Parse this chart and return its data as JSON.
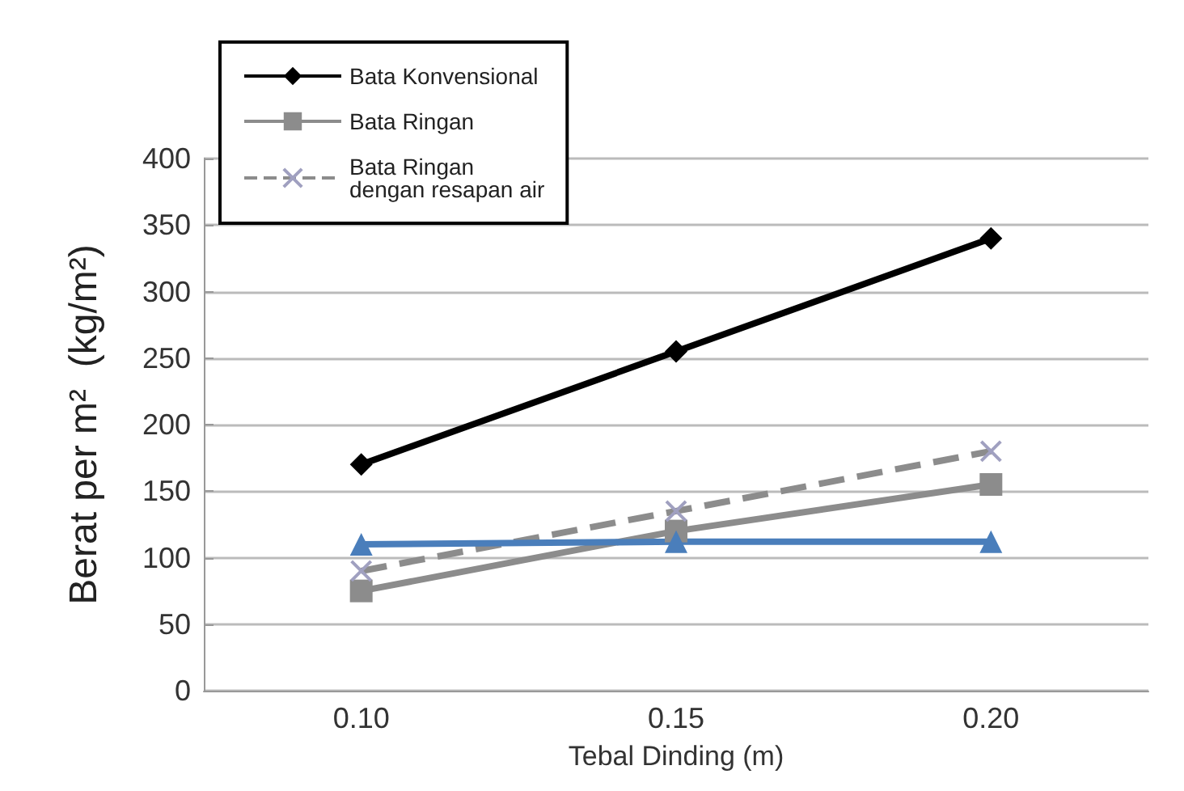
{
  "chart_data": {
    "type": "line",
    "xlabel": "Tebal Dinding (m)",
    "ylabel": "Berat per m²  (kg/m²)",
    "categories": [
      "0.10",
      "0.15",
      "0.20"
    ],
    "ylim": [
      0,
      400
    ],
    "yticks": [
      0,
      50,
      100,
      150,
      200,
      250,
      300,
      350,
      400
    ],
    "grid": "y",
    "legend": "top left",
    "series": [
      {
        "name": "Bata Konvensional",
        "color": "#000000",
        "marker": "diamond",
        "line_style": "solid",
        "values": [
          170,
          255,
          340
        ]
      },
      {
        "name": "Bata Ringan",
        "color": "#8c8c8c",
        "marker": "square",
        "line_style": "solid",
        "values": [
          75,
          120,
          155
        ]
      },
      {
        "name": "Bata Ringan\ndengan resapan air",
        "color": "#8c8c8c",
        "marker": "cross",
        "line_style": "dashed",
        "values": [
          90,
          135,
          180
        ]
      },
      {
        "color": "#4a7ebb",
        "marker": "triangle",
        "line_style": "solid",
        "values": [
          110,
          112,
          112
        ]
      }
    ]
  }
}
